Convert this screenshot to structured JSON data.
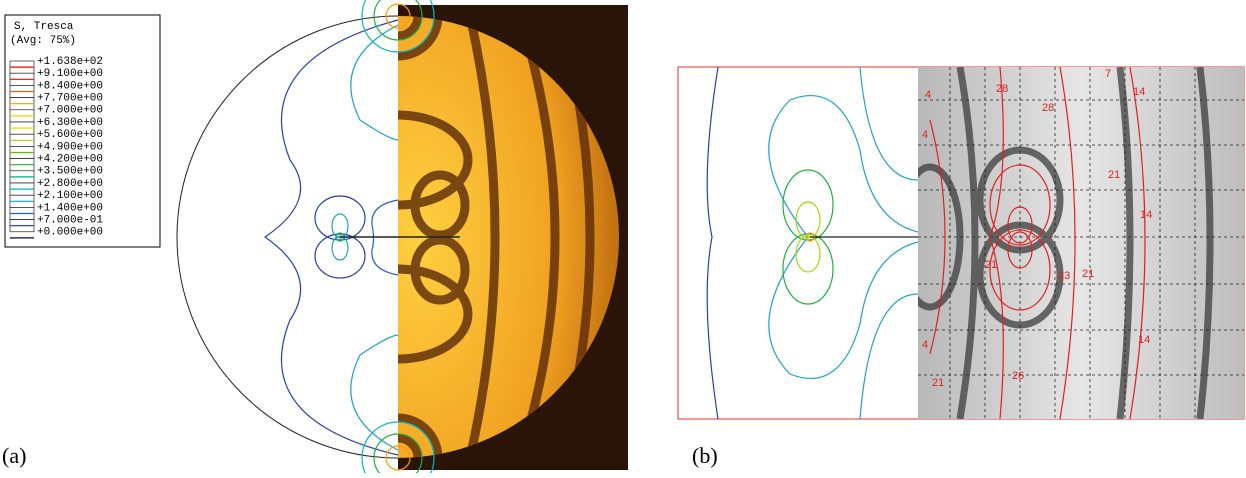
{
  "legend": {
    "title": "S, Tresca",
    "subtitle": "(Avg: 75%)",
    "entries": [
      {
        "label": "+1.638e+02",
        "color": "#ff0000"
      },
      {
        "label": "+9.100e+00",
        "color": "#ff0000"
      },
      {
        "label": "+8.400e+00",
        "color": "#ff5a00"
      },
      {
        "label": "+7.700e+00",
        "color": "#ff9a00"
      },
      {
        "label": "+7.000e+00",
        "color": "#ffc800"
      },
      {
        "label": "+6.300e+00",
        "color": "#e8e000"
      },
      {
        "label": "+5.600e+00",
        "color": "#a8d800"
      },
      {
        "label": "+4.900e+00",
        "color": "#5cc000"
      },
      {
        "label": "+4.200e+00",
        "color": "#20b040"
      },
      {
        "label": "+3.500e+00",
        "color": "#00b088"
      },
      {
        "label": "+2.800e+00",
        "color": "#00b8c8"
      },
      {
        "label": "+2.100e+00",
        "color": "#00a0e0"
      },
      {
        "label": "+1.400e+00",
        "color": "#2060e0"
      },
      {
        "label": "+7.000e-01",
        "color": "#2030b0"
      },
      {
        "label": "+0.000e+00",
        "color": "#000040"
      }
    ]
  },
  "panels": [
    {
      "label": "(a)"
    },
    {
      "label": "(b)"
    }
  ],
  "contour_labels": [
    "28",
    "28",
    "7",
    "14",
    "4",
    "21",
    "14",
    "21",
    "23",
    "21",
    "26",
    "14",
    "4",
    "21",
    "4"
  ]
}
